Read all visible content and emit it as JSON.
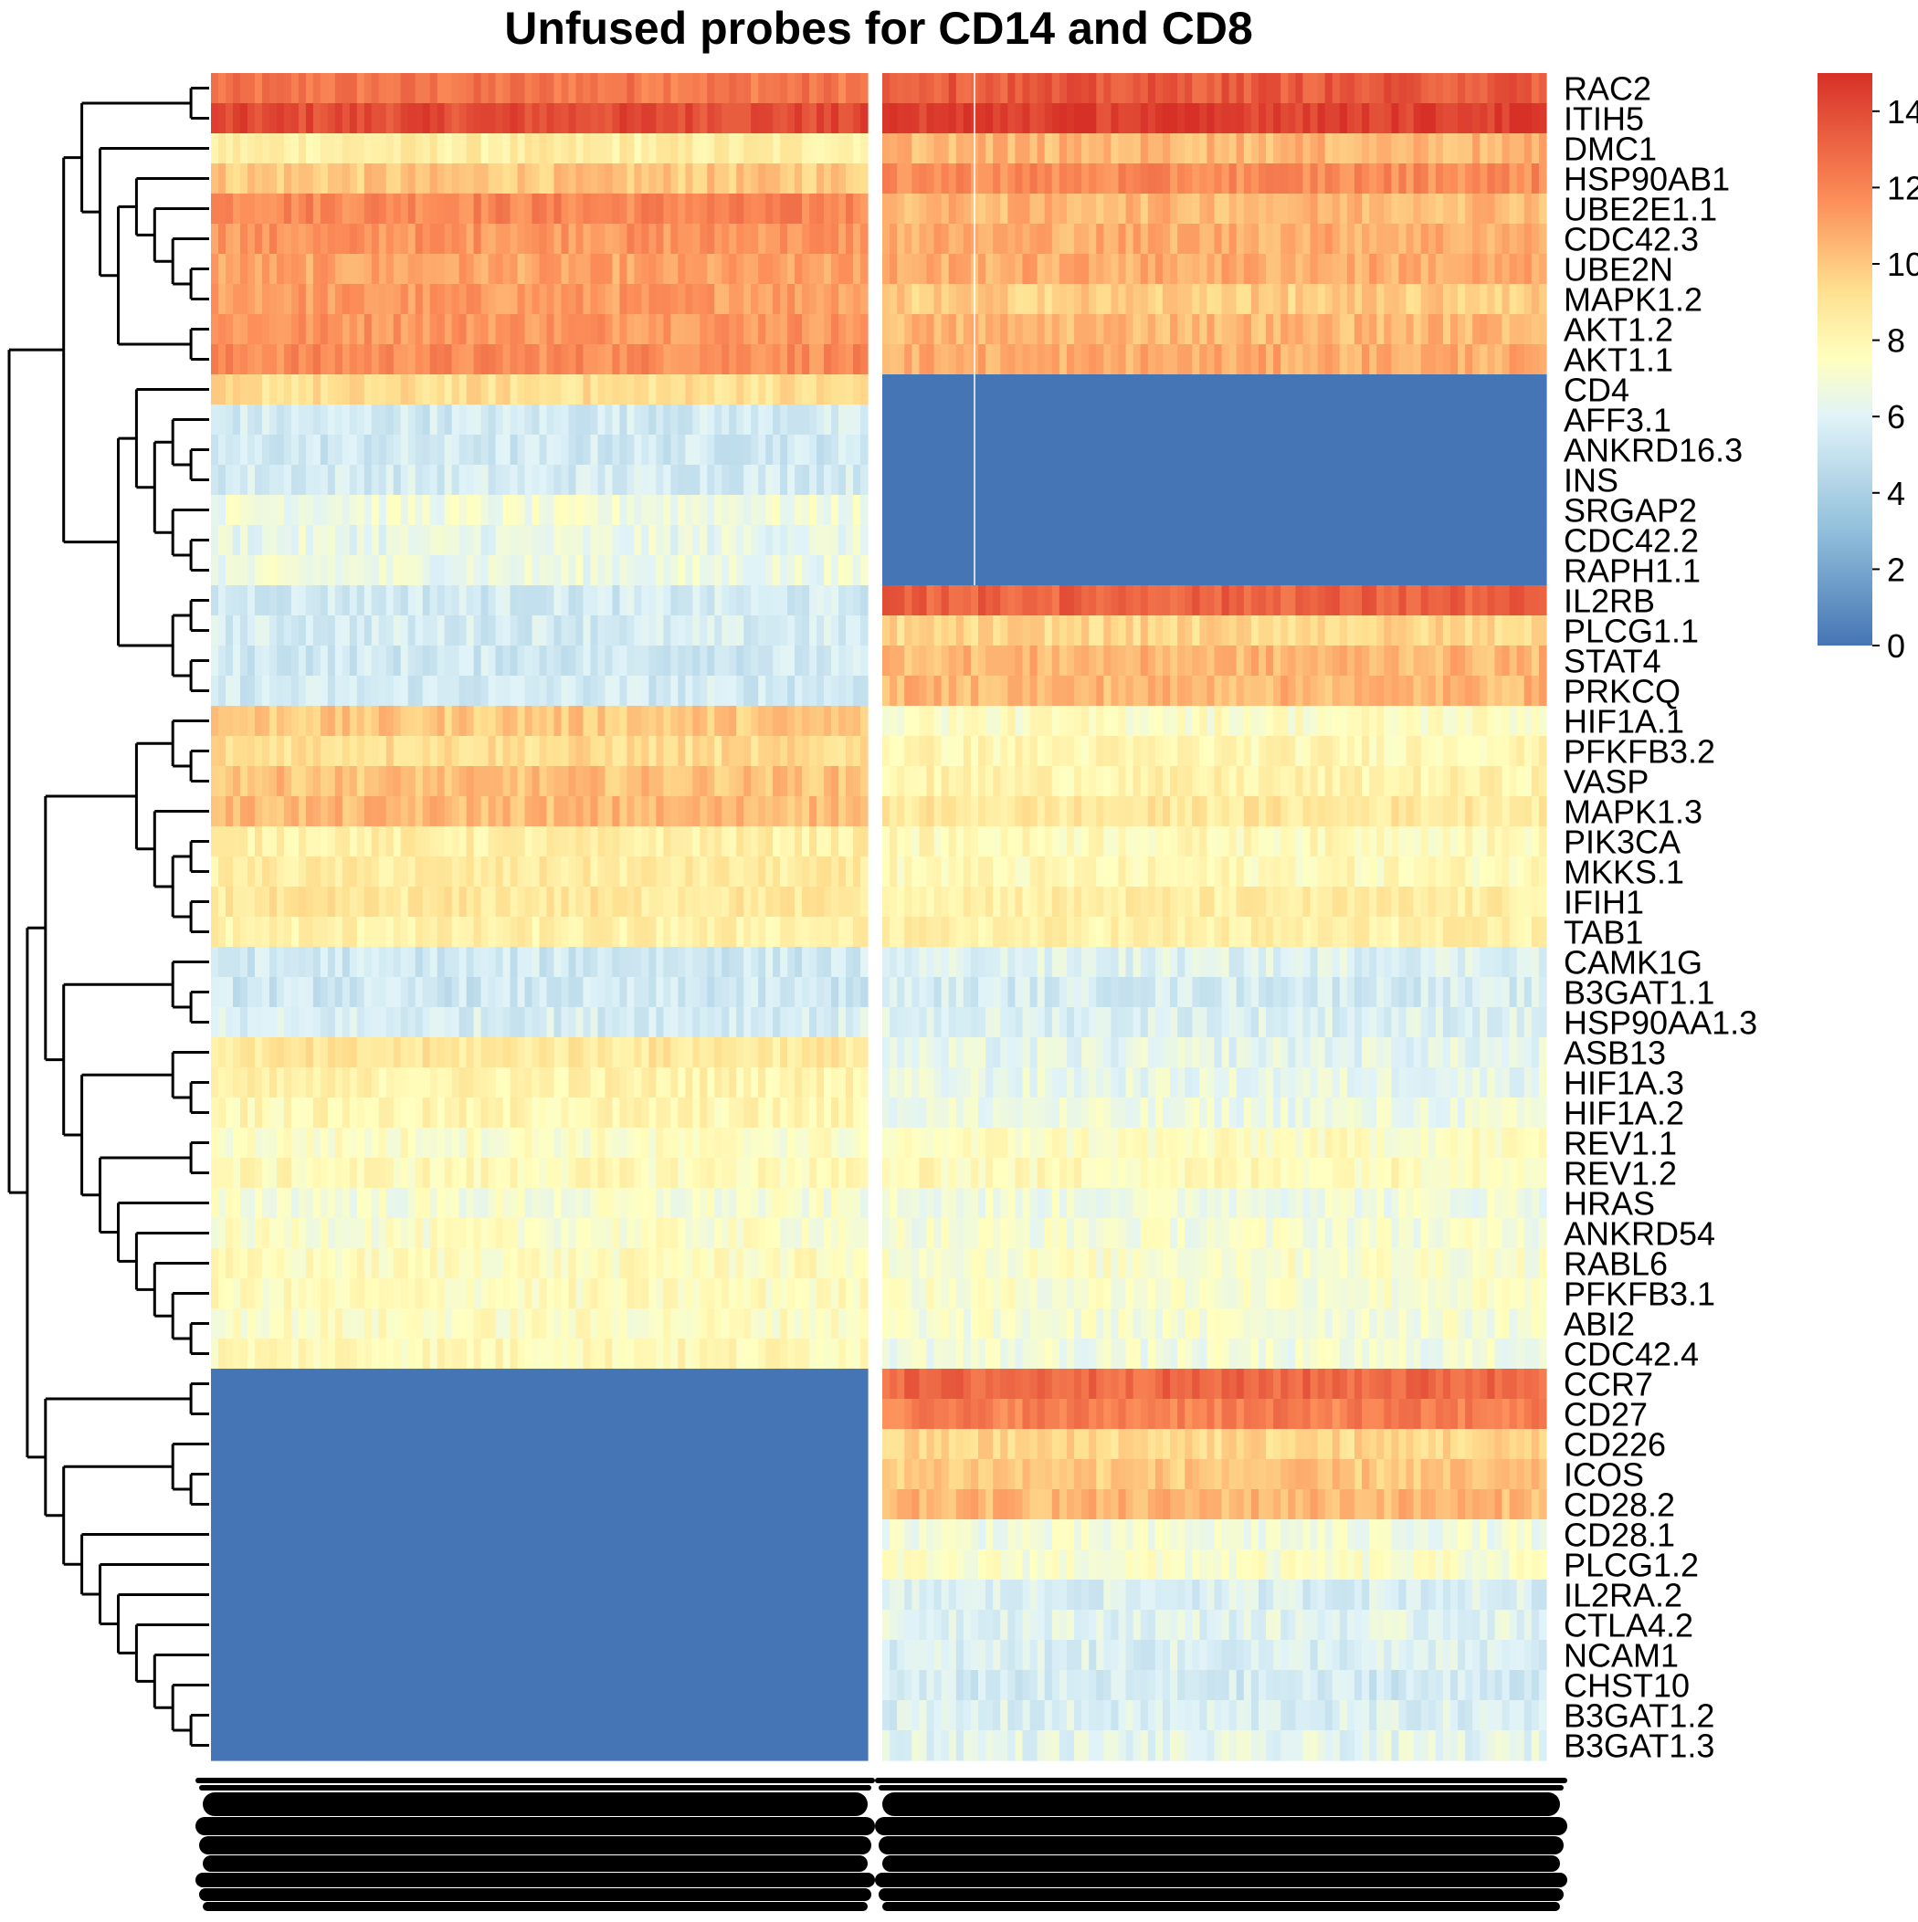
{
  "chart_data": {
    "type": "heatmap",
    "title": "Unfused probes for CD14 and CD8",
    "xlabel": "",
    "ylabel": "",
    "rows": [
      "RAC2",
      "ITIH5",
      "DMC1",
      "HSP90AB1",
      "UBE2E1.1",
      "CDC42.3",
      "UBE2N",
      "MAPK1.2",
      "AKT1.2",
      "AKT1.1",
      "CD4",
      "AFF3.1",
      "ANKRD16.3",
      "INS",
      "SRGAP2",
      "CDC42.2",
      "RAPH1.1",
      "IL2RB",
      "PLCG1.1",
      "STAT4",
      "PRKCQ",
      "HIF1A.1",
      "PFKFB3.2",
      "VASP",
      "MAPK1.3",
      "PIK3CA",
      "MKKS.1",
      "IFIH1",
      "TAB1",
      "CAMK1G",
      "B3GAT1.1",
      "HSP90AA1.3",
      "ASB13",
      "HIF1A.3",
      "HIF1A.2",
      "REV1.1",
      "REV1.2",
      "HRAS",
      "ANKRD54",
      "RABL6",
      "PFKFB3.1",
      "ABI2",
      "CDC42.4",
      "CCR7",
      "CD27",
      "CD226",
      "ICOS",
      "CD28.2",
      "CD28.1",
      "PLCG1.2",
      "IL2RA.2",
      "CTLA4.2",
      "NCAM1",
      "CHST10",
      "B3GAT1.2",
      "B3GAT1.3"
    ],
    "column_groups": [
      "CD14",
      "CD8"
    ],
    "values_block_1": [
      12.5,
      14.0,
      8.5,
      10.0,
      12.0,
      11.5,
      11.0,
      11.3,
      11.5,
      11.8,
      9.2,
      5.5,
      5.4,
      5.6,
      6.8,
      6.4,
      6.6,
      5.5,
      5.6,
      5.4,
      5.5,
      10.0,
      9.3,
      10.2,
      10.4,
      8.4,
      8.6,
      8.8,
      8.3,
      5.4,
      5.3,
      5.7,
      8.8,
      8.2,
      8.0,
      7.4,
      7.8,
      7.0,
      7.3,
      7.6,
      7.6,
      7.5,
      7.9,
      0,
      0,
      0,
      0,
      0,
      0,
      0,
      0,
      0,
      0,
      0,
      0,
      0
    ],
    "values_block_2": [
      13.5,
      14.5,
      10.5,
      11.8,
      10.5,
      10.8,
      10.8,
      9.8,
      10.5,
      10.8,
      0,
      0,
      0,
      0,
      0,
      0,
      0,
      13.2,
      9.5,
      10.5,
      10.5,
      7.5,
      8.0,
      8.2,
      8.8,
      7.8,
      7.8,
      8.5,
      8.3,
      6.0,
      5.6,
      5.9,
      6.2,
      6.4,
      6.6,
      7.5,
      7.8,
      6.8,
      7.0,
      7.3,
      7.2,
      7.0,
      6.8,
      13.0,
      12.2,
      9.5,
      10.0,
      10.5,
      6.8,
      7.2,
      5.8,
      6.1,
      5.8,
      5.5,
      5.8,
      6.2
    ],
    "colorbar": {
      "min": 0,
      "max": 15,
      "ticks": [
        0,
        2,
        4,
        6,
        8,
        10,
        12,
        14
      ]
    },
    "column_labels_note": "",
    "grid": false,
    "legend_position": "right",
    "colors": {
      "low": "#4575b4",
      "mid": "#ffffbf",
      "high": "#d73027"
    }
  }
}
